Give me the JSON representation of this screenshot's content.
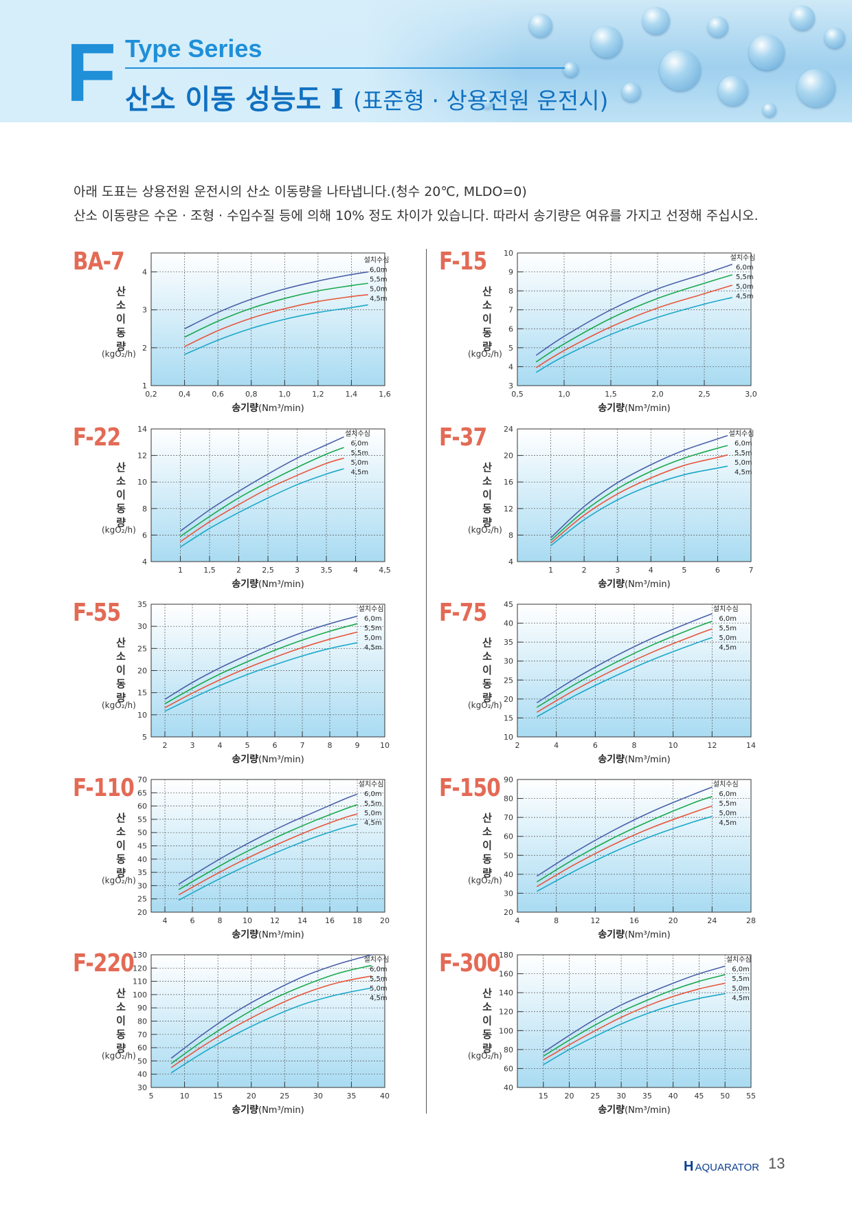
{
  "header": {
    "letter": "F",
    "series": "Type Series",
    "title": "산소 이동 성능도",
    "numeral": "Ⅰ",
    "subtitle": "(표준형 · 상용전원 운전시)"
  },
  "intro": {
    "line1": "아래 도표는 상용전원 운전시의 산소 이동량을 나타냅니다.(청수 20℃, MLDO=0)",
    "line2": "산소 이동량은 수온 · 조형 · 수입수질 등에 의해 10% 정도 차이가 있습니다. 따라서 송기량은 여유를 가지고 선정해 주십시오."
  },
  "common": {
    "ylabel": "산소 이동량",
    "yunit": "(kgO₂/h)",
    "xlabel": "송기량",
    "xunit": "(Nm³/min)",
    "install_title": "설치수심",
    "depths": [
      "6.0m",
      "5.5m",
      "5.0m",
      "4.5m"
    ],
    "colors": [
      "#4a60a8",
      "#19a84c",
      "#e8553a",
      "#1aa8c8"
    ]
  },
  "footer": {
    "logo_mark": "H",
    "logo_text": "AQUARATOR",
    "page": "13"
  },
  "chart_data": [
    {
      "model": "BA-7",
      "type": "line",
      "xlabel": "송기량",
      "ylabel": "산소 이동량",
      "xlim": [
        0.2,
        1.6
      ],
      "ylim": [
        1,
        4.5
      ],
      "xticks": [
        "0.2",
        "0.4",
        "0.6",
        "0.8",
        "1.0",
        "1.2",
        "1.4",
        "1.6"
      ],
      "yticks": [
        "1",
        "2",
        "3",
        "4"
      ],
      "x": [
        0.4,
        0.6,
        0.8,
        1.0,
        1.2,
        1.4,
        1.5
      ],
      "series": [
        {
          "name": "6.0m",
          "values": [
            2.5,
            2.93,
            3.28,
            3.55,
            3.76,
            3.93,
            4.0
          ]
        },
        {
          "name": "5.5m",
          "values": [
            2.28,
            2.7,
            3.04,
            3.3,
            3.5,
            3.64,
            3.7
          ]
        },
        {
          "name": "5.0m",
          "values": [
            2.03,
            2.45,
            2.78,
            3.03,
            3.22,
            3.35,
            3.4
          ]
        },
        {
          "name": "4.5m",
          "values": [
            1.82,
            2.2,
            2.51,
            2.75,
            2.93,
            3.06,
            3.13
          ]
        }
      ]
    },
    {
      "model": "F-15",
      "type": "line",
      "xlabel": "송기량",
      "ylabel": "산소 이동량",
      "xlim": [
        0.5,
        3.0
      ],
      "ylim": [
        3,
        10
      ],
      "xticks": [
        "0.5",
        "1.0",
        "1.5",
        "2.0",
        "2.5",
        "3.0"
      ],
      "yticks": [
        "3",
        "4",
        "5",
        "6",
        "7",
        "8",
        "9",
        "10"
      ],
      "x": [
        0.7,
        1.0,
        1.5,
        2.0,
        2.5,
        2.8
      ],
      "series": [
        {
          "name": "6.0m",
          "values": [
            4.6,
            5.6,
            7.0,
            8.1,
            8.9,
            9.4
          ]
        },
        {
          "name": "5.5m",
          "values": [
            4.25,
            5.2,
            6.55,
            7.6,
            8.4,
            8.85
          ]
        },
        {
          "name": "5.0m",
          "values": [
            3.95,
            4.85,
            6.1,
            7.1,
            7.85,
            8.3
          ]
        },
        {
          "name": "4.5m",
          "values": [
            3.7,
            4.55,
            5.7,
            6.6,
            7.3,
            7.65
          ]
        }
      ]
    },
    {
      "model": "F-22",
      "type": "line",
      "xlabel": "송기량",
      "ylabel": "산소 이동량",
      "xlim": [
        0.5,
        4.5
      ],
      "ylim": [
        4,
        14
      ],
      "xticks": [
        "1",
        "1.5",
        "2",
        "2.5",
        "3",
        "3.5",
        "4",
        "4.5"
      ],
      "yticks": [
        "4",
        "6",
        "8",
        "10",
        "12",
        "14"
      ],
      "x": [
        1.0,
        1.5,
        2.0,
        2.5,
        3.0,
        3.5,
        3.8
      ],
      "series": [
        {
          "name": "6.0m",
          "values": [
            6.3,
            7.9,
            9.3,
            10.6,
            11.8,
            12.8,
            13.4
          ]
        },
        {
          "name": "5.5m",
          "values": [
            5.9,
            7.4,
            8.8,
            10.0,
            11.1,
            12.1,
            12.6
          ]
        },
        {
          "name": "5.0m",
          "values": [
            5.5,
            7.0,
            8.3,
            9.5,
            10.5,
            11.4,
            11.8
          ]
        },
        {
          "name": "4.5m",
          "values": [
            5.1,
            6.5,
            7.7,
            8.8,
            9.8,
            10.6,
            11.0
          ]
        }
      ]
    },
    {
      "model": "F-37",
      "type": "line",
      "xlabel": "송기량",
      "ylabel": "산소 이동량",
      "xlim": [
        0,
        7
      ],
      "ylim": [
        4,
        24
      ],
      "xticks": [
        "1",
        "2",
        "3",
        "4",
        "5",
        "6",
        "7"
      ],
      "yticks": [
        "4",
        "8",
        "12",
        "16",
        "20",
        "24"
      ],
      "x": [
        1.0,
        2.0,
        3.0,
        4.0,
        5.0,
        6.0,
        6.3
      ],
      "series": [
        {
          "name": "6.0m",
          "values": [
            7.6,
            12.3,
            15.9,
            18.6,
            20.8,
            22.5,
            23.0
          ]
        },
        {
          "name": "5.5m",
          "values": [
            7.2,
            11.6,
            15.0,
            17.6,
            19.6,
            21.1,
            21.5
          ]
        },
        {
          "name": "5.0m",
          "values": [
            6.8,
            11.0,
            14.2,
            16.6,
            18.5,
            19.7,
            20.1
          ]
        },
        {
          "name": "4.5m",
          "values": [
            6.4,
            10.3,
            13.3,
            15.5,
            17.1,
            18.1,
            18.4
          ]
        }
      ]
    },
    {
      "model": "F-55",
      "type": "line",
      "xlabel": "송기량",
      "ylabel": "산소 이동량",
      "xlim": [
        1.5,
        10
      ],
      "ylim": [
        5,
        35
      ],
      "xticks": [
        "2",
        "3",
        "4",
        "5",
        "6",
        "7",
        "8",
        "9",
        "10"
      ],
      "yticks": [
        "5",
        "10",
        "15",
        "20",
        "25",
        "30",
        "35"
      ],
      "x": [
        2,
        3,
        4,
        5,
        6,
        7,
        8,
        9
      ],
      "series": [
        {
          "name": "6.0m",
          "values": [
            13.5,
            17.3,
            20.6,
            23.5,
            26.2,
            28.6,
            30.6,
            32.3
          ]
        },
        {
          "name": "5.5m",
          "values": [
            12.5,
            16.0,
            19.2,
            22.0,
            24.6,
            26.9,
            28.9,
            30.6
          ]
        },
        {
          "name": "5.0m",
          "values": [
            11.6,
            14.9,
            17.9,
            20.6,
            23.0,
            25.2,
            27.1,
            28.7
          ]
        },
        {
          "name": "4.5m",
          "values": [
            10.8,
            13.8,
            16.6,
            19.1,
            21.3,
            23.3,
            25.0,
            26.3
          ]
        }
      ]
    },
    {
      "model": "F-75",
      "type": "line",
      "xlabel": "송기량",
      "ylabel": "산소 이동량",
      "xlim": [
        2,
        14
      ],
      "ylim": [
        10,
        45
      ],
      "xticks": [
        "2",
        "4",
        "6",
        "8",
        "10",
        "12",
        "14"
      ],
      "yticks": [
        "10",
        "15",
        "20",
        "25",
        "30",
        "35",
        "40",
        "45"
      ],
      "x": [
        3,
        5,
        7,
        9,
        11,
        12
      ],
      "series": [
        {
          "name": "6.0m",
          "values": [
            19.0,
            25.5,
            31.2,
            36.2,
            40.5,
            42.5
          ]
        },
        {
          "name": "5.5m",
          "values": [
            17.8,
            24.0,
            29.5,
            34.4,
            38.6,
            40.5
          ]
        },
        {
          "name": "5.0m",
          "values": [
            16.5,
            22.5,
            27.8,
            32.5,
            36.6,
            38.5
          ]
        },
        {
          "name": "4.5m",
          "values": [
            15.3,
            21.0,
            26.0,
            30.5,
            34.4,
            36.2
          ]
        }
      ]
    },
    {
      "model": "F-110",
      "type": "line",
      "xlabel": "송기량",
      "ylabel": "산소 이동량",
      "xlim": [
        3,
        20
      ],
      "ylim": [
        20,
        70
      ],
      "xticks": [
        "4",
        "6",
        "8",
        "10",
        "12",
        "14",
        "16",
        "18",
        "20"
      ],
      "yticks": [
        "20",
        "25",
        "30",
        "35",
        "40",
        "45",
        "50",
        "55",
        "60",
        "65",
        "70"
      ],
      "x": [
        5,
        7,
        9,
        11,
        13,
        15,
        17,
        18
      ],
      "series": [
        {
          "name": "6.0m",
          "values": [
            30.5,
            37.0,
            43.0,
            48.5,
            53.5,
            58.0,
            62.5,
            64.5
          ]
        },
        {
          "name": "5.5m",
          "values": [
            28.5,
            34.5,
            40.3,
            45.5,
            50.3,
            54.7,
            58.7,
            60.5
          ]
        },
        {
          "name": "5.0m",
          "values": [
            26.5,
            32.3,
            37.8,
            42.8,
            47.4,
            51.7,
            55.5,
            57.0
          ]
        },
        {
          "name": "4.5m",
          "values": [
            24.5,
            30.0,
            35.2,
            40.0,
            44.4,
            48.4,
            51.8,
            53.2
          ]
        }
      ]
    },
    {
      "model": "F-150",
      "type": "line",
      "xlabel": "송기량",
      "ylabel": "산소 이동량",
      "xlim": [
        4,
        28
      ],
      "ylim": [
        20,
        90
      ],
      "xticks": [
        "4",
        "8",
        "12",
        "16",
        "20",
        "24",
        "28"
      ],
      "yticks": [
        "20",
        "30",
        "40",
        "50",
        "60",
        "70",
        "80",
        "90"
      ],
      "x": [
        6,
        10,
        14,
        18,
        22,
        24
      ],
      "series": [
        {
          "name": "6.0m",
          "values": [
            39.0,
            52.0,
            63.5,
            73.5,
            82.0,
            86.0
          ]
        },
        {
          "name": "5.5m",
          "values": [
            36.0,
            48.5,
            59.5,
            69.0,
            77.5,
            81.0
          ]
        },
        {
          "name": "5.0m",
          "values": [
            33.5,
            45.5,
            56.0,
            65.0,
            72.5,
            76.0
          ]
        },
        {
          "name": "4.5m",
          "values": [
            31.0,
            42.0,
            52.0,
            60.5,
            67.5,
            70.5
          ]
        }
      ]
    },
    {
      "model": "F-220",
      "type": "line",
      "xlabel": "송기량",
      "ylabel": "산소 이동량",
      "xlim": [
        5,
        40
      ],
      "ylim": [
        30,
        130
      ],
      "xticks": [
        "5",
        "10",
        "15",
        "20",
        "25",
        "30",
        "35",
        "40"
      ],
      "yticks": [
        "30",
        "40",
        "50",
        "60",
        "70",
        "80",
        "90",
        "100",
        "110",
        "120",
        "130"
      ],
      "x": [
        8,
        13,
        18,
        23,
        28,
        33,
        38
      ],
      "series": [
        {
          "name": "6.0m",
          "values": [
            52,
            71,
            88,
            102,
            114,
            123,
            130
          ]
        },
        {
          "name": "5.5m",
          "values": [
            48,
            66,
            82,
            96,
            107,
            116,
            122
          ]
        },
        {
          "name": "5.0m",
          "values": [
            45,
            62,
            77,
            90,
            101,
            109,
            114
          ]
        },
        {
          "name": "4.5m",
          "values": [
            41,
            57,
            71,
            83,
            93,
            100,
            105
          ]
        }
      ]
    },
    {
      "model": "F-300",
      "type": "line",
      "xlabel": "송기량",
      "ylabel": "산소 이동량",
      "xlim": [
        10,
        55
      ],
      "ylim": [
        40,
        180
      ],
      "xticks": [
        "15",
        "20",
        "25",
        "30",
        "35",
        "40",
        "45",
        "50",
        "55"
      ],
      "yticks": [
        "40",
        "60",
        "80",
        "100",
        "120",
        "140",
        "160",
        "180"
      ],
      "x": [
        15,
        20,
        25,
        30,
        35,
        40,
        45,
        50
      ],
      "series": [
        {
          "name": "6.0m",
          "values": [
            77,
            95,
            112,
            127,
            139,
            150,
            160,
            168
          ]
        },
        {
          "name": "5.5m",
          "values": [
            73,
            90,
            106,
            120,
            132,
            143,
            152,
            159
          ]
        },
        {
          "name": "5.0m",
          "values": [
            69,
            85,
            100,
            114,
            126,
            136,
            144,
            150
          ]
        },
        {
          "name": "4.5m",
          "values": [
            64,
            80,
            94,
            107,
            118,
            127,
            134,
            139
          ]
        }
      ]
    }
  ]
}
